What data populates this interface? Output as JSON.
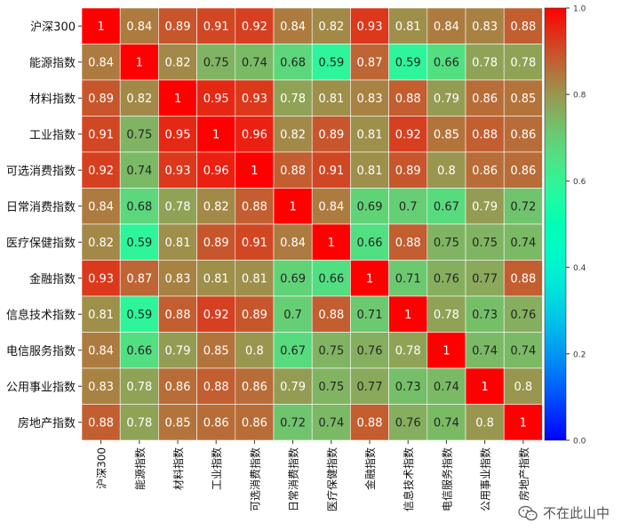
{
  "chart_data": {
    "type": "heatmap",
    "title": "",
    "labels": [
      "沪深300",
      "能源指数",
      "材料指数",
      "工业指数",
      "可选消费指数",
      "日常消费指数",
      "医疗保健指数",
      "金融指数",
      "信息技术指数",
      "电信服务指数",
      "公用事业指数",
      "房地产指数"
    ],
    "values": [
      [
        1,
        0.84,
        0.89,
        0.91,
        0.92,
        0.84,
        0.82,
        0.93,
        0.81,
        0.84,
        0.83,
        0.88
      ],
      [
        0.84,
        1,
        0.82,
        0.75,
        0.74,
        0.68,
        0.59,
        0.87,
        0.59,
        0.66,
        0.78,
        0.78
      ],
      [
        0.89,
        0.82,
        1,
        0.95,
        0.93,
        0.78,
        0.81,
        0.83,
        0.88,
        0.79,
        0.86,
        0.85
      ],
      [
        0.91,
        0.75,
        0.95,
        1,
        0.96,
        0.82,
        0.89,
        0.81,
        0.92,
        0.85,
        0.88,
        0.86
      ],
      [
        0.92,
        0.74,
        0.93,
        0.96,
        1,
        0.88,
        0.91,
        0.81,
        0.89,
        0.8,
        0.86,
        0.86
      ],
      [
        0.84,
        0.68,
        0.78,
        0.82,
        0.88,
        1,
        0.84,
        0.69,
        0.7,
        0.67,
        0.79,
        0.72
      ],
      [
        0.82,
        0.59,
        0.81,
        0.89,
        0.91,
        0.84,
        1,
        0.66,
        0.88,
        0.75,
        0.75,
        0.74
      ],
      [
        0.93,
        0.87,
        0.83,
        0.81,
        0.81,
        0.69,
        0.66,
        1,
        0.71,
        0.76,
        0.77,
        0.88
      ],
      [
        0.81,
        0.59,
        0.88,
        0.92,
        0.89,
        0.7,
        0.88,
        0.71,
        1,
        0.78,
        0.73,
        0.76
      ],
      [
        0.84,
        0.66,
        0.79,
        0.85,
        0.8,
        0.67,
        0.75,
        0.76,
        0.78,
        1,
        0.74,
        0.74
      ],
      [
        0.83,
        0.78,
        0.86,
        0.88,
        0.86,
        0.79,
        0.75,
        0.77,
        0.73,
        0.74,
        1,
        0.8
      ],
      [
        0.88,
        0.78,
        0.85,
        0.86,
        0.86,
        0.72,
        0.74,
        0.88,
        0.76,
        0.74,
        0.8,
        1
      ]
    ],
    "colormap": "rainbow",
    "vmin": 0,
    "vmax": 1,
    "colorbar_ticks": [
      "0.0",
      "0.2",
      "0.4",
      "0.6",
      "0.8",
      "1.0"
    ]
  },
  "watermark": {
    "text": "不在此山中",
    "icon": "wechat-icon"
  }
}
